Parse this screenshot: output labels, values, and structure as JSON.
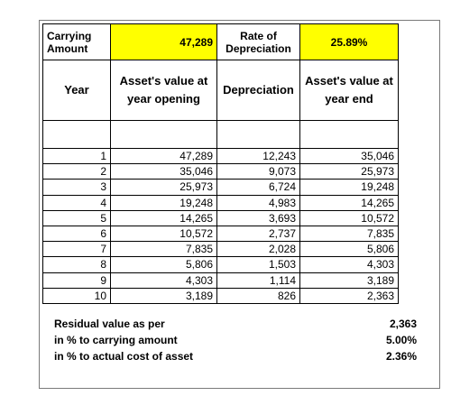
{
  "header": {
    "carrying_label": "Carrying Amount",
    "carrying_value": "47,289",
    "rate_label": "Rate of Depreciation",
    "rate_value": "25.89%"
  },
  "columns": {
    "year": "Year",
    "opening": "Asset's value at year opening",
    "depreciation": "Depreciation",
    "end": "Asset's value at year end"
  },
  "rows": [
    {
      "year": "1",
      "opening": "47,289",
      "depreciation": "12,243",
      "end": "35,046"
    },
    {
      "year": "2",
      "opening": "35,046",
      "depreciation": "9,073",
      "end": "25,973"
    },
    {
      "year": "3",
      "opening": "25,973",
      "depreciation": "6,724",
      "end": "19,248"
    },
    {
      "year": "4",
      "opening": "19,248",
      "depreciation": "4,983",
      "end": "14,265"
    },
    {
      "year": "5",
      "opening": "14,265",
      "depreciation": "3,693",
      "end": "10,572"
    },
    {
      "year": "6",
      "opening": "10,572",
      "depreciation": "2,737",
      "end": "7,835"
    },
    {
      "year": "7",
      "opening": "7,835",
      "depreciation": "2,028",
      "end": "5,806"
    },
    {
      "year": "8",
      "opening": "5,806",
      "depreciation": "1,503",
      "end": "4,303"
    },
    {
      "year": "9",
      "opening": "4,303",
      "depreciation": "1,114",
      "end": "3,189"
    },
    {
      "year": "10",
      "opening": "3,189",
      "depreciation": "826",
      "end": "2,363"
    }
  ],
  "summary": [
    {
      "label": "Residual value as per",
      "value": "2,363"
    },
    {
      "label": "in % to carrying amount",
      "value": "5.00%"
    },
    {
      "label": "in % to actual cost of asset",
      "value": "2.36%"
    }
  ]
}
